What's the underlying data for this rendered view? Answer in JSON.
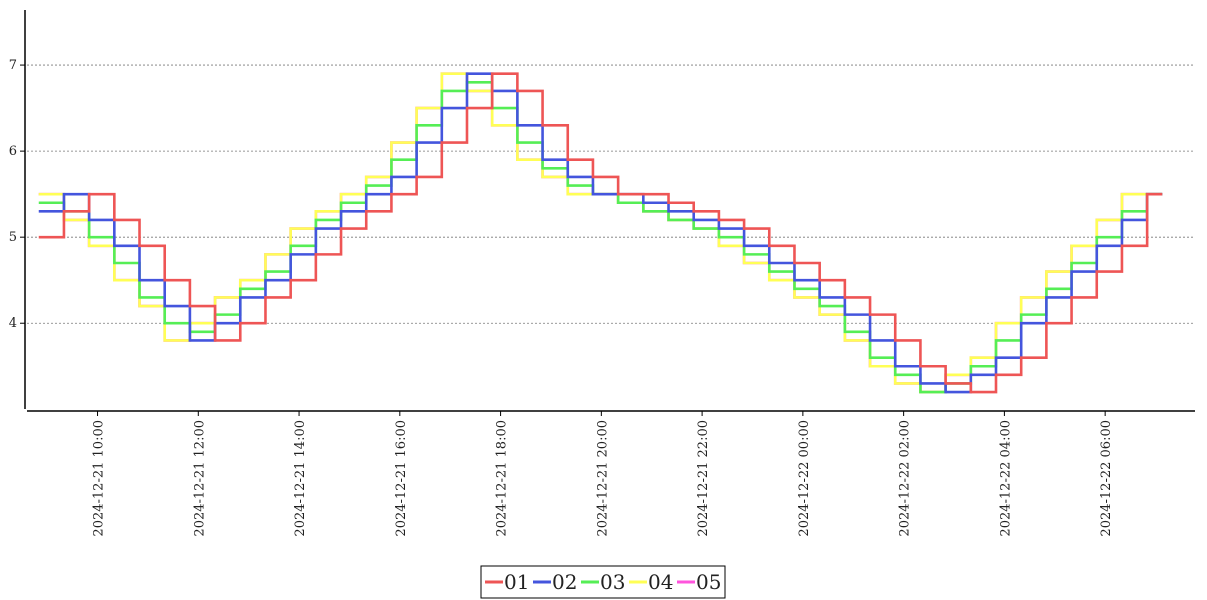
{
  "chart_data": {
    "type": "step-line",
    "x": [
      "2024-12-21 08:50",
      "2024-12-21 09:20",
      "2024-12-21 09:50",
      "2024-12-21 10:20",
      "2024-12-21 10:50",
      "2024-12-21 11:20",
      "2024-12-21 11:50",
      "2024-12-21 12:20",
      "2024-12-21 12:50",
      "2024-12-21 13:20",
      "2024-12-21 13:50",
      "2024-12-21 14:20",
      "2024-12-21 14:50",
      "2024-12-21 15:20",
      "2024-12-21 15:50",
      "2024-12-21 16:20",
      "2024-12-21 16:50",
      "2024-12-21 17:20",
      "2024-12-21 17:50",
      "2024-12-21 18:20",
      "2024-12-21 18:50",
      "2024-12-21 19:20",
      "2024-12-21 19:50",
      "2024-12-21 20:20",
      "2024-12-21 20:50",
      "2024-12-21 21:20",
      "2024-12-21 21:50",
      "2024-12-21 22:20",
      "2024-12-21 22:50",
      "2024-12-21 23:20",
      "2024-12-21 23:50",
      "2024-12-22 00:20",
      "2024-12-22 00:50",
      "2024-12-22 01:20",
      "2024-12-22 01:50",
      "2024-12-22 02:20",
      "2024-12-22 02:50",
      "2024-12-22 03:20",
      "2024-12-22 03:50",
      "2024-12-22 04:20",
      "2024-12-22 04:50",
      "2024-12-22 05:20",
      "2024-12-22 05:50",
      "2024-12-22 06:20",
      "2024-12-22 06:50"
    ],
    "series": [
      {
        "name": "01",
        "color": "#ee5555",
        "values": [
          5.0,
          5.3,
          5.5,
          5.2,
          4.9,
          4.5,
          4.2,
          3.8,
          4.0,
          4.3,
          4.5,
          4.8,
          5.1,
          5.3,
          5.5,
          5.7,
          6.1,
          6.5,
          6.9,
          6.7,
          6.3,
          5.9,
          5.7,
          5.5,
          5.5,
          5.4,
          5.3,
          5.2,
          5.1,
          4.9,
          4.7,
          4.5,
          4.3,
          4.1,
          3.8,
          3.5,
          3.3,
          3.2,
          3.4,
          3.6,
          4.0,
          4.3,
          4.6,
          4.9,
          5.5
        ]
      },
      {
        "name": "02",
        "color": "#4455dd",
        "values": [
          5.3,
          5.5,
          5.2,
          4.9,
          4.5,
          4.2,
          3.8,
          4.0,
          4.3,
          4.5,
          4.8,
          5.1,
          5.3,
          5.5,
          5.7,
          6.1,
          6.5,
          6.9,
          6.7,
          6.3,
          5.9,
          5.7,
          5.5,
          5.5,
          5.4,
          5.3,
          5.2,
          5.1,
          4.9,
          4.7,
          4.5,
          4.3,
          4.1,
          3.8,
          3.5,
          3.3,
          3.2,
          3.4,
          3.6,
          4.0,
          4.3,
          4.6,
          4.9,
          5.2,
          5.5
        ]
      },
      {
        "name": "03",
        "color": "#55ee55",
        "values": [
          5.4,
          5.3,
          5.0,
          4.7,
          4.3,
          4.0,
          3.9,
          4.1,
          4.4,
          4.6,
          4.9,
          5.2,
          5.4,
          5.6,
          5.9,
          6.3,
          6.7,
          6.8,
          6.5,
          6.1,
          5.8,
          5.6,
          5.5,
          5.4,
          5.3,
          5.2,
          5.1,
          5.0,
          4.8,
          4.6,
          4.4,
          4.2,
          3.9,
          3.6,
          3.4,
          3.2,
          3.3,
          3.5,
          3.8,
          4.1,
          4.4,
          4.7,
          5.0,
          5.3,
          5.5
        ]
      },
      {
        "name": "04",
        "color": "#ffff55",
        "values": [
          5.5,
          5.2,
          4.9,
          4.5,
          4.2,
          3.8,
          4.0,
          4.3,
          4.5,
          4.8,
          5.1,
          5.3,
          5.5,
          5.7,
          6.1,
          6.5,
          6.9,
          6.7,
          6.3,
          5.9,
          5.7,
          5.5,
          5.5,
          5.4,
          5.3,
          5.2,
          5.1,
          4.9,
          4.7,
          4.5,
          4.3,
          4.1,
          3.8,
          3.5,
          3.3,
          3.2,
          3.4,
          3.6,
          4.0,
          4.3,
          4.6,
          4.9,
          5.2,
          5.5,
          5.5
        ]
      },
      {
        "name": "05",
        "color": "#ff55dd",
        "values": [
          5.5,
          5.2,
          4.9,
          4.5,
          4.2,
          3.8,
          4.0,
          4.3,
          4.5,
          4.8,
          5.1,
          5.3,
          5.5,
          5.7,
          6.1,
          6.5,
          6.9,
          6.7,
          6.3,
          5.9,
          5.7,
          5.5,
          5.5,
          5.4,
          5.3,
          5.2,
          5.1,
          4.9,
          4.7,
          4.5,
          4.3,
          4.1,
          3.8,
          3.5,
          3.3,
          3.2,
          3.4,
          3.6,
          4.0,
          4.3,
          4.6,
          4.9,
          5.2,
          5.5,
          5.5
        ]
      }
    ],
    "xlim": [
      "2024-12-21 08:36",
      "2024-12-22 07:47"
    ],
    "xticks": [
      "2024-12-21 10:00",
      "2024-12-21 12:00",
      "2024-12-21 14:00",
      "2024-12-21 16:00",
      "2024-12-21 18:00",
      "2024-12-21 20:00",
      "2024-12-21 22:00",
      "2024-12-22 00:00",
      "2024-12-22 02:00",
      "2024-12-22 04:00",
      "2024-12-22 06:00"
    ],
    "ylim": [
      2.98,
      7.64
    ],
    "yticks": [
      4,
      5,
      6,
      7
    ],
    "grid": true,
    "legend": "bottom"
  }
}
